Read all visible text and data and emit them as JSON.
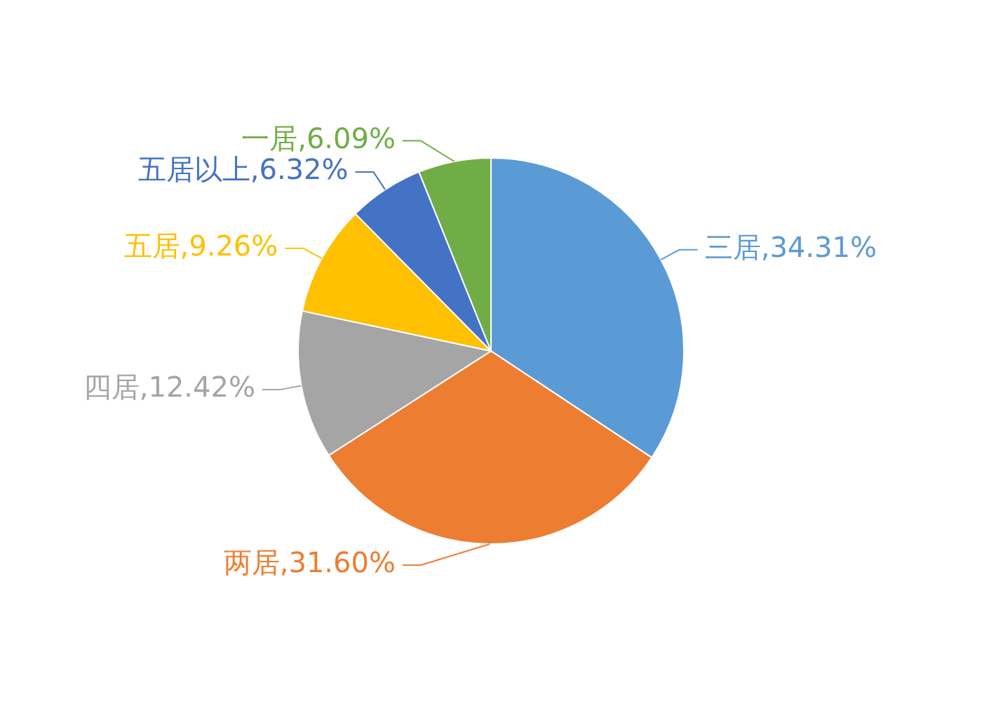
{
  "chart_data": {
    "type": "pie",
    "categories": [
      "三居",
      "两居",
      "四居",
      "五居",
      "五居以上",
      "一居"
    ],
    "values": [
      34.31,
      31.6,
      12.42,
      9.26,
      6.32,
      6.09
    ],
    "colors": [
      "#5b9bd5",
      "#ed7d31",
      "#a5a5a5",
      "#ffc000",
      "#4472c4",
      "#70ad47"
    ],
    "value_labels": [
      "34.31%",
      "31.60%",
      "12.42%",
      "9.26%",
      "6.32%",
      "6.09%"
    ]
  }
}
